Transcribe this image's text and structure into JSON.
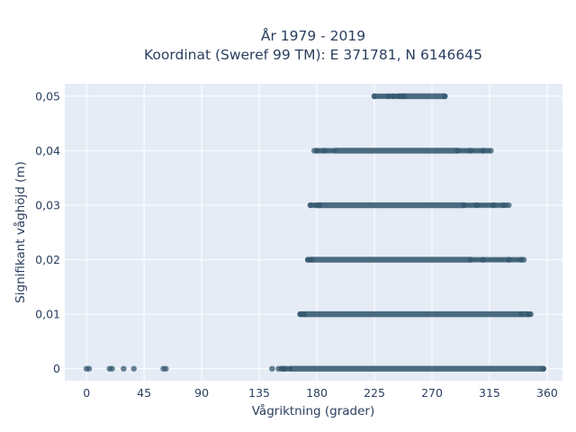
{
  "chart_data": {
    "type": "scatter",
    "title": "År 1979 - 2019",
    "subtitle": "Koordinat (Sweref 99 TM): E 371781, N 6146645",
    "xlabel": "Vågriktning (grader)",
    "ylabel": "Signifikant våghöjd (m)",
    "xlim": [
      -17,
      372
    ],
    "ylim": [
      -0.0022,
      0.0523
    ],
    "x_ticks": [
      0,
      45,
      90,
      135,
      180,
      225,
      270,
      315,
      360
    ],
    "x_tick_labels": [
      "0",
      "45",
      "90",
      "135",
      "180",
      "225",
      "270",
      "315",
      "360"
    ],
    "y_ticks": [
      0,
      0.01,
      0.02,
      0.03,
      0.04,
      0.05
    ],
    "y_tick_labels": [
      "0",
      "0,01",
      "0,02",
      "0,03",
      "0,04",
      "0,05"
    ],
    "grid": true,
    "marker_color": "#34586e",
    "background": "#e5ecf6",
    "series": [
      {
        "values": [
          {
            "y": 0,
            "x_range": [
              150,
              358
            ],
            "dense_range": [
              160,
              357
            ]
          },
          {
            "y": 0.01,
            "x_range": [
              167,
              348
            ],
            "dense_range": [
              168,
              345
            ]
          },
          {
            "y": 0.02,
            "x_range": [
              173,
              342
            ],
            "dense_range": [
              175,
              300
            ]
          },
          {
            "y": 0.03,
            "x_range": [
              175,
              330
            ],
            "dense_range": [
              180,
              295
            ]
          },
          {
            "y": 0.04,
            "x_range": [
              178,
              316
            ],
            "dense_range": [
              195,
              290
            ]
          },
          {
            "y": 0.05,
            "x_range": [
              225,
              282
            ],
            "dense_range": [
              245,
              280
            ]
          }
        ],
        "points": [
          {
            "x": 0,
            "y": 0
          },
          {
            "x": 2,
            "y": 0
          },
          {
            "x": 18,
            "y": 0
          },
          {
            "x": 20,
            "y": 0
          },
          {
            "x": 29,
            "y": 0
          },
          {
            "x": 37,
            "y": 0
          },
          {
            "x": 60,
            "y": 0
          },
          {
            "x": 62,
            "y": 0
          },
          {
            "x": 145,
            "y": 0
          },
          {
            "x": 153,
            "y": 0
          },
          {
            "x": 155,
            "y": 0
          },
          {
            "x": 167,
            "y": 0.01
          },
          {
            "x": 170,
            "y": 0.01
          },
          {
            "x": 340,
            "y": 0.01
          },
          {
            "x": 346,
            "y": 0.01
          },
          {
            "x": 173,
            "y": 0.02
          },
          {
            "x": 176,
            "y": 0.02
          },
          {
            "x": 310,
            "y": 0.02
          },
          {
            "x": 330,
            "y": 0.02
          },
          {
            "x": 340,
            "y": 0.02
          },
          {
            "x": 175,
            "y": 0.03
          },
          {
            "x": 182,
            "y": 0.03
          },
          {
            "x": 305,
            "y": 0.03
          },
          {
            "x": 318,
            "y": 0.03
          },
          {
            "x": 326,
            "y": 0.03
          },
          {
            "x": 330,
            "y": 0.03
          },
          {
            "x": 180,
            "y": 0.04
          },
          {
            "x": 186,
            "y": 0.04
          },
          {
            "x": 300,
            "y": 0.04
          },
          {
            "x": 310,
            "y": 0.04
          },
          {
            "x": 316,
            "y": 0.04
          },
          {
            "x": 225,
            "y": 0.05
          },
          {
            "x": 236,
            "y": 0.05
          },
          {
            "x": 240,
            "y": 0.05
          },
          {
            "x": 244,
            "y": 0.05
          },
          {
            "x": 248,
            "y": 0.05
          }
        ]
      }
    ]
  }
}
